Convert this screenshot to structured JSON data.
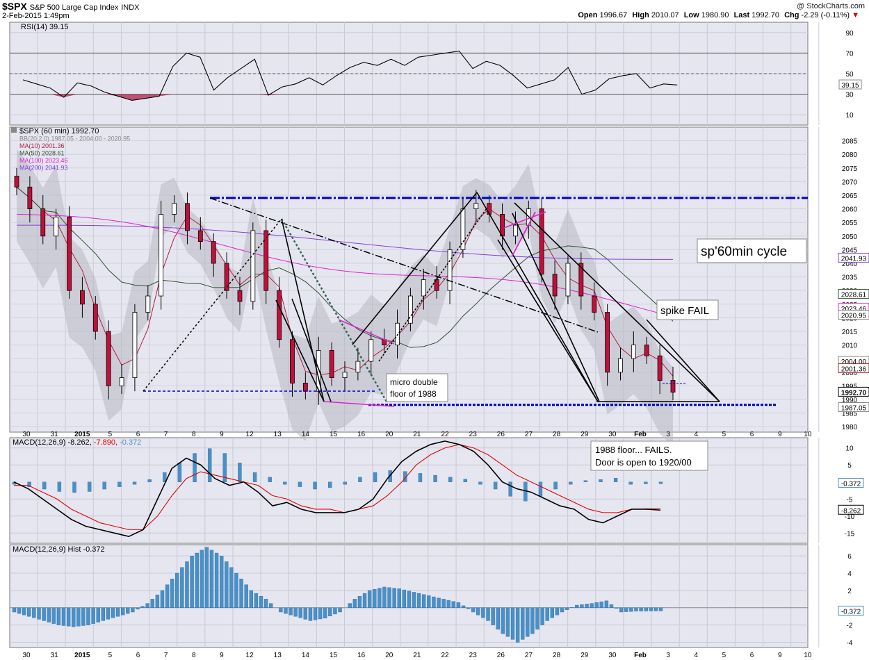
{
  "header": {
    "symbol": "$SPX",
    "name": "S&P 500 Large Cap Index",
    "exchange": "INDX",
    "datetime": "2-Feb-2015 1:49pm",
    "watermark": "@ StockCharts.com",
    "open_label": "Open",
    "open": "1996.67",
    "high_label": "High",
    "high": "2010.07",
    "low_label": "Low",
    "low": "1980.90",
    "last_label": "Last",
    "last": "1992.70",
    "chg_label": "Chg",
    "chg": "-2.29 (-0.11%)"
  },
  "chart_data": [
    {
      "type": "line",
      "panel": "rsi",
      "legend": "RSI(14) 39.15",
      "yticks": [
        90,
        70,
        50,
        30,
        10
      ],
      "ylim": [
        0,
        100
      ],
      "value_label": "39.15",
      "x": [
        0,
        1,
        2,
        3,
        4,
        5,
        6,
        7,
        8,
        9,
        10,
        11,
        12,
        13,
        14,
        15,
        16,
        17,
        18,
        19,
        20,
        21,
        22,
        23,
        24,
        25,
        26,
        27,
        28,
        29,
        30,
        31,
        32,
        33,
        34,
        35,
        36,
        37,
        38,
        39,
        40,
        41,
        42,
        43,
        44,
        45,
        46,
        47,
        48
      ],
      "values": [
        44,
        40,
        36,
        27,
        41,
        38,
        32,
        28,
        24,
        26,
        28,
        57,
        70,
        66,
        34,
        46,
        55,
        64,
        29,
        37,
        40,
        46,
        39,
        48,
        56,
        61,
        58,
        64,
        58,
        66,
        68,
        70,
        72,
        55,
        62,
        58,
        48,
        36,
        40,
        44,
        56,
        30,
        34,
        45,
        48,
        50,
        36,
        40,
        39
      ]
    },
    {
      "type": "candlestick",
      "panel": "price",
      "legend": [
        {
          "text": "$SPX (60 min) 1992.70",
          "color": "#000000"
        },
        {
          "text": "BB(20,2.0) 1987.05 - 2004.00 - 2020.95",
          "color": "#888888"
        },
        {
          "text": "MA(10) 2001.36",
          "color": "#b0203a"
        },
        {
          "text": "MA(50) 2028.61",
          "color": "#2f4f2f"
        },
        {
          "text": "MA(100) 2023.46",
          "color": "#e020d0"
        },
        {
          "text": "MA(200) 2041.93",
          "color": "#8040e0"
        }
      ],
      "yticks": [
        2085,
        2080,
        2075,
        2070,
        2065,
        2060,
        2055,
        2050,
        2045,
        2040,
        2035,
        2030,
        2025,
        2020,
        2015,
        2010,
        2005,
        2000,
        1995,
        1990,
        1985,
        1980
      ],
      "ylim": [
        1978,
        2090
      ],
      "close": [
        2068,
        2060,
        2050,
        2057,
        2030,
        2025,
        2015,
        1995,
        1998,
        2022,
        2028,
        2058,
        2062,
        2052,
        2048,
        2040,
        2030,
        2026,
        2052,
        2030,
        2012,
        1996,
        1993,
        2008,
        1998,
        2000,
        2004,
        2012,
        2010,
        2018,
        2028,
        2034,
        2030,
        2045,
        2060,
        2062,
        2058,
        2050,
        2054,
        2060,
        2036,
        2028,
        2040,
        2028,
        2022,
        2000,
        2005,
        2010,
        2006,
        1997,
        1992.7
      ],
      "value_labels": [
        {
          "text": "2041.93",
          "value": 2041.93
        },
        {
          "text": "2028.61",
          "value": 2028.61
        },
        {
          "text": "2023.46",
          "value": 2023.46
        },
        {
          "text": "2020.95",
          "value": 2020.95
        },
        {
          "text": "2004.00",
          "value": 2004.0
        },
        {
          "text": "2001.36",
          "value": 2001.36
        },
        {
          "text": "1992.70",
          "value": 1992.7
        },
        {
          "text": "1987.05",
          "value": 1987.05
        }
      ],
      "annotations": [
        {
          "text": "sp'60min cycle"
        },
        {
          "text": "spike FAIL"
        },
        {
          "text": "micro double floor of 1988",
          "line1": "micro double",
          "line2": "floor of 1988"
        },
        {
          "text": "1988 floor... FAILS. Door is open to 1920/00",
          "line1": "1988 floor... FAILS.",
          "line2": "Door is open to 1920/00"
        }
      ],
      "levels": [
        2064,
        1988
      ]
    },
    {
      "type": "line",
      "panel": "macd",
      "legend": {
        "prefix": "MACD(12,26,9)",
        "macd": "-8.262",
        "signal": "-7.890",
        "hist": "-0.372"
      },
      "yticks": [
        10,
        5,
        -5,
        -10,
        -15
      ],
      "ylim": [
        -18,
        13
      ],
      "value_labels": [
        {
          "text": "-0.372",
          "value": -0.372
        },
        {
          "text": "-8.262",
          "value": -8.262
        }
      ],
      "macd": [
        0,
        -2,
        -5,
        -8,
        -11,
        -13,
        -14,
        -15,
        -16,
        -14,
        -5,
        4,
        7,
        5,
        1,
        -1,
        0,
        -3,
        -7,
        -6,
        -8,
        -9,
        -9,
        -9,
        -8,
        -5,
        1,
        6,
        9,
        11,
        12,
        11,
        9,
        5,
        0,
        -2,
        -3,
        -5,
        -7,
        -8,
        -11,
        -12,
        -10,
        -8,
        -8,
        -8.262
      ],
      "signal": [
        -1,
        -1,
        -3,
        -5,
        -8,
        -10,
        -12,
        -13,
        -14,
        -14,
        -10,
        -4,
        1,
        3,
        2,
        1,
        0,
        -1,
        -4,
        -5,
        -7,
        -8,
        -8,
        -9,
        -8,
        -7,
        -4,
        0,
        5,
        8,
        10,
        11,
        10,
        8,
        5,
        2,
        0,
        -2,
        -4,
        -6,
        -8,
        -9,
        -9,
        -8,
        -7.9,
        -7.89
      ]
    },
    {
      "type": "bar",
      "panel": "histogram",
      "legend": "MACD(12,26,9) Hist -0.372",
      "yticks": [
        6,
        4,
        2,
        -2,
        -4
      ],
      "ylim": [
        -4.6,
        7.3
      ],
      "value_label": "-0.372",
      "values": [
        -0.5,
        -1,
        -1.5,
        -2,
        -2.2,
        -2,
        -1.5,
        -1,
        -0.5,
        0.5,
        2,
        4,
        6,
        7,
        6,
        4,
        2,
        1,
        -0.5,
        -1,
        -1.5,
        -1.2,
        -0.5,
        1,
        2,
        2.4,
        2.2,
        1.8,
        1.4,
        1,
        0.6,
        -0.5,
        -1.5,
        -3,
        -4,
        -3,
        -1.5,
        -0.5,
        0.3,
        0.5,
        0.8,
        -0.5,
        -0.4,
        -0.372
      ]
    }
  ],
  "x_axis": {
    "labels": [
      "30",
      "31",
      "2015",
      "5",
      "6",
      "7",
      "8",
      "9",
      "12",
      "13",
      "14",
      "15",
      "16",
      "20",
      "21",
      "22",
      "23",
      "26",
      "27",
      "28",
      "29",
      "30",
      "Feb",
      "3",
      "4",
      "5",
      "6",
      "9",
      "10"
    ],
    "bold": [
      "2015",
      "Feb"
    ]
  }
}
